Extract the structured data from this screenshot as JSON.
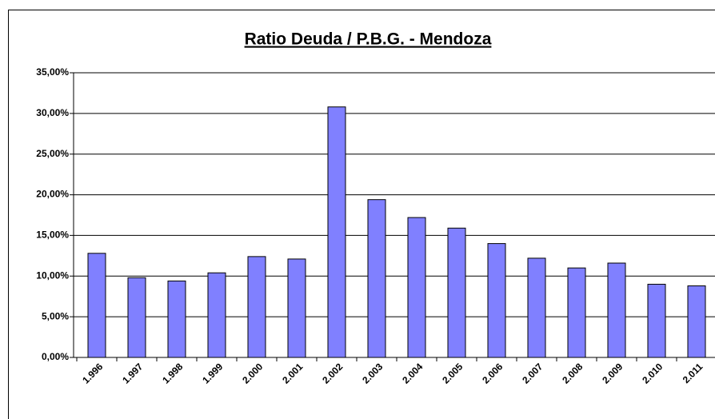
{
  "chart_data": {
    "type": "bar",
    "title": "Ratio Deuda / P.B.G. - Mendoza",
    "categories": [
      "1.996",
      "1.997",
      "1.998",
      "1.999",
      "2.000",
      "2.001",
      "2.002",
      "2.003",
      "2.004",
      "2.005",
      "2.006",
      "2.007",
      "2.008",
      "2.009",
      "2.010",
      "2.011"
    ],
    "values": [
      12.8,
      9.8,
      9.4,
      10.4,
      12.4,
      12.1,
      30.8,
      19.4,
      17.2,
      15.9,
      14.0,
      12.2,
      11.0,
      11.6,
      9.0,
      8.8
    ],
    "color": "#8080ff",
    "ylim": [
      0,
      35
    ],
    "yticks": [
      {
        "value": 0,
        "label": "0,00%"
      },
      {
        "value": 5,
        "label": "5,00%"
      },
      {
        "value": 10,
        "label": "10,00%"
      },
      {
        "value": 15,
        "label": "15,00%"
      },
      {
        "value": 20,
        "label": "20,00%"
      },
      {
        "value": 25,
        "label": "25,00%"
      },
      {
        "value": 30,
        "label": "30,00%"
      },
      {
        "value": 35,
        "label": "35,00%"
      }
    ],
    "grid": true
  }
}
